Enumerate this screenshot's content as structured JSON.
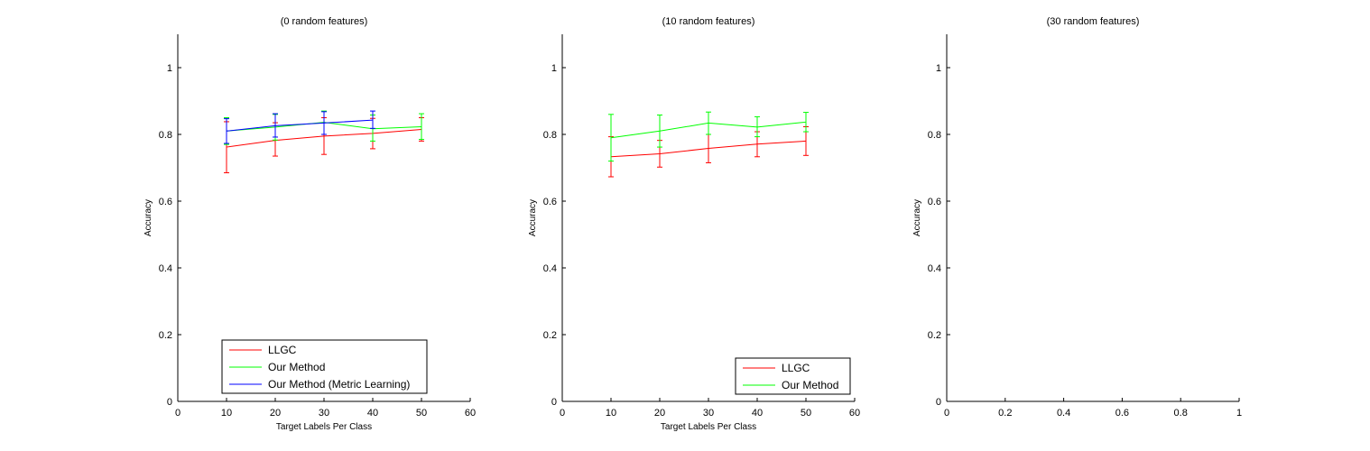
{
  "chart_data": [
    {
      "type": "line",
      "title": "(0 random features)",
      "xlabel": "Target Labels Per Class",
      "ylabel": "Accuracy",
      "xlim": [
        0,
        60
      ],
      "ylim": [
        0,
        1.1
      ],
      "xticks": [
        "0",
        "10",
        "20",
        "30",
        "40",
        "50",
        "60"
      ],
      "yticks": [
        "0",
        "0.2",
        "0.4",
        "0.6",
        "0.8",
        "1"
      ],
      "legend_position": "bottom-center",
      "series": [
        {
          "name": "LLGC",
          "color": "#ff0000",
          "x": [
            10,
            20,
            30,
            40,
            50
          ],
          "y": [
            0.762,
            0.782,
            0.795,
            0.803,
            0.815
          ],
          "err_low": [
            0.685,
            0.735,
            0.74,
            0.757,
            0.78
          ],
          "err_high": [
            0.838,
            0.835,
            0.85,
            0.848,
            0.85
          ]
        },
        {
          "name": "Our Method",
          "color": "#00ff00",
          "x": [
            10,
            20,
            30,
            40,
            50
          ],
          "y": [
            0.81,
            0.822,
            0.836,
            0.817,
            0.823
          ],
          "err_low": [
            0.77,
            0.783,
            0.8,
            0.78,
            0.785
          ],
          "err_high": [
            0.85,
            0.86,
            0.87,
            0.858,
            0.862
          ]
        },
        {
          "name": "Our Method (Metric Learning)",
          "color": "#0000ff",
          "x": [
            10,
            20,
            30,
            40
          ],
          "y": [
            0.81,
            0.826,
            0.834,
            0.843
          ],
          "err_low": [
            0.773,
            0.792,
            0.8,
            0.818
          ],
          "err_high": [
            0.847,
            0.862,
            0.868,
            0.87
          ]
        }
      ]
    },
    {
      "type": "line",
      "title": "(10 random features)",
      "xlabel": "Target Labels Per Class",
      "ylabel": "Accuracy",
      "xlim": [
        0,
        60
      ],
      "ylim": [
        0,
        1.1
      ],
      "xticks": [
        "0",
        "10",
        "20",
        "30",
        "40",
        "50",
        "60"
      ],
      "yticks": [
        "0",
        "0.2",
        "0.4",
        "0.6",
        "0.8",
        "1"
      ],
      "legend_position": "bottom-right",
      "series": [
        {
          "name": "LLGC",
          "color": "#ff0000",
          "x": [
            10,
            20,
            30,
            40,
            50
          ],
          "y": [
            0.733,
            0.742,
            0.758,
            0.771,
            0.78
          ],
          "err_low": [
            0.673,
            0.702,
            0.715,
            0.733,
            0.737
          ],
          "err_high": [
            0.793,
            0.782,
            0.8,
            0.808,
            0.823
          ]
        },
        {
          "name": "Our Method",
          "color": "#00ff00",
          "x": [
            10,
            20,
            30,
            40,
            50
          ],
          "y": [
            0.79,
            0.81,
            0.834,
            0.822,
            0.837
          ],
          "err_low": [
            0.72,
            0.762,
            0.8,
            0.793,
            0.808
          ],
          "err_high": [
            0.86,
            0.858,
            0.867,
            0.853,
            0.866
          ]
        }
      ]
    },
    {
      "type": "line",
      "title": "(30 random features)",
      "xlabel": "",
      "ylabel": "Accuracy",
      "xlim": [
        0,
        1
      ],
      "ylim": [
        0,
        1.1
      ],
      "xticks": [
        "0",
        "0.2",
        "0.4",
        "0.6",
        "0.8",
        "1"
      ],
      "yticks": [
        "0",
        "0.2",
        "0.4",
        "0.6",
        "0.8",
        "1"
      ],
      "legend_position": "",
      "series": []
    }
  ]
}
